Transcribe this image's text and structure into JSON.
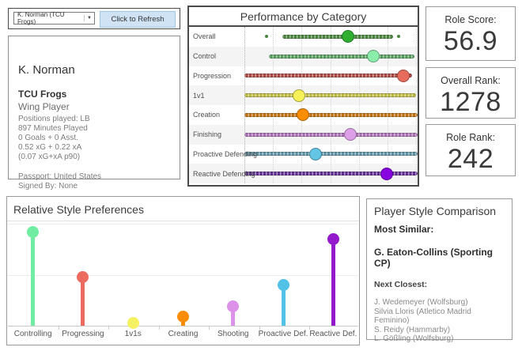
{
  "controls": {
    "player_select_value": "K. Norman (TCU Frogs)",
    "refresh_button_label": "Click to Refresh"
  },
  "icons": {
    "dropdown_arrow": "▼"
  },
  "player_info": {
    "name": "K. Norman",
    "team": "TCU Frogs",
    "role": "Wing Player",
    "details": [
      "Positions played: LB",
      "897 Minutes Played",
      "0 Goals + 0 Asst.",
      "0.52 xG + 0.22 xA",
      "(0.07 xG+xA p90)"
    ],
    "footer": [
      "Passport: United States",
      "Signed By: None"
    ]
  },
  "stats": [
    {
      "label": "Role Score:",
      "value": "56.9"
    },
    {
      "label": "Overall Rank:",
      "value": "1278"
    },
    {
      "label": "Role Rank:",
      "value": "242"
    }
  ],
  "chart_data": [
    {
      "type": "scatter",
      "subtype": "strip-distribution-with-player-dot",
      "title": "Performance by Category",
      "categories": [
        "Overall",
        "Control",
        "Progression",
        "1v1",
        "Creation",
        "Finishing",
        "Proactive Defending",
        "Reactive Defending"
      ],
      "player_values_percent": [
        60,
        74.5,
        92,
        31.5,
        34,
        61,
        41,
        82
      ],
      "dot_colors": [
        "#2fae32",
        "#8ceca9",
        "#e76c5e",
        "#f6f159",
        "#fb8d02",
        "#dda0e8",
        "#64c4e4",
        "#8704e0"
      ],
      "strip_colors": [
        "#48843c",
        "#569e5d",
        "#aa4742",
        "#bdb83f",
        "#bf700f",
        "#a86fb2",
        "#5e92a3",
        "#622e93"
      ],
      "strips": [
        {
          "start": 22,
          "end": 86
        },
        {
          "start": 14,
          "end": 98
        },
        {
          "start": 0,
          "end": 97
        },
        {
          "start": 0,
          "end": 99
        },
        {
          "start": 0,
          "end": 100
        },
        {
          "start": 0,
          "end": 100
        },
        {
          "start": 0,
          "end": 100
        },
        {
          "start": 0,
          "end": 100
        }
      ],
      "outliers": [
        [
          13,
          89
        ],
        [],
        [],
        [],
        [],
        [],
        [],
        []
      ],
      "xlim": [
        0,
        100
      ],
      "x_tick_labels_visible": false,
      "gridlines": "vertical-dotted"
    },
    {
      "type": "lollipop",
      "title": "Relative Style Preferences",
      "categories": [
        "Controlling",
        "Progressing",
        "1v1s",
        "Creating",
        "Shooting",
        "Proactive Def.",
        "Reactive Def."
      ],
      "values": [
        0.91,
        0.47,
        0.03,
        0.09,
        0.19,
        0.4,
        0.84
      ],
      "colors": [
        "#70eda2",
        "#ec6a5e",
        "#f6f162",
        "#fb8d02",
        "#dc92e8",
        "#51c1e8",
        "#9519cc"
      ],
      "ylim": [
        0,
        1
      ],
      "y_tick_labels_visible": false,
      "gridlines": "horizontal"
    }
  ],
  "comparison": {
    "title": "Player Style Comparison",
    "most_similar_label": "Most Similar:",
    "most_similar": "G. Eaton-Collins (Sporting CP)",
    "next_closest_label": "Next Closest:",
    "next_closest": [
      "J. Wedemeyer (Wolfsburg)",
      "Silvia Lloris (Atletico Madrid Feminino)",
      "S. Reidy (Hammarby)",
      "L. Gößling (Wolfsburg)"
    ]
  }
}
